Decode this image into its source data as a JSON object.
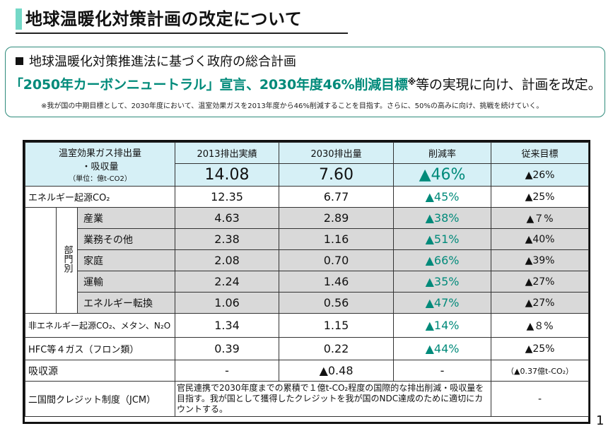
{
  "title": "地球温暖化対策計画の改定について",
  "info": {
    "line1": "地球温暖化対策推進法に基づく政府の総合計画",
    "line2_highlight": "「2050年カーボンニュートラル」宣言、2030年度46%削減目標",
    "line2_sup": "※",
    "line2_rest": "等の実現に向け、計画を改定。",
    "note": "※我が国の中期目標として、2030年度において、温室効果ガスを2013年度から46%削減することを目指す。さらに、50%の高みに向け、挑戦を続けていく。"
  },
  "table": {
    "header": {
      "corner_line1": "温室効果ガス排出量",
      "corner_line2": "・吸収量",
      "corner_unit": "（単位：億t-CO2）",
      "col1": "2013排出実績",
      "col2": "2030排出量",
      "col3": "削減率",
      "col4": "従来目標",
      "total1": "14.08",
      "total2": "7.60",
      "total3": "▲46%",
      "total4": "▲26%"
    },
    "energy_row": {
      "label": "エネルギー起源CO₂",
      "v1": "12.35",
      "v2": "6.77",
      "v3": "▲45%",
      "v4": "▲25%"
    },
    "sector_label": "部門別",
    "sectors": [
      {
        "label": "産業",
        "v1": "4.63",
        "v2": "2.89",
        "v3": "▲38%",
        "v4": "▲７%"
      },
      {
        "label": "業務その他",
        "v1": "2.38",
        "v2": "1.16",
        "v3": "▲51%",
        "v4": "▲40%"
      },
      {
        "label": "家庭",
        "v1": "2.08",
        "v2": "0.70",
        "v3": "▲66%",
        "v4": "▲39%"
      },
      {
        "label": "運輸",
        "v1": "2.24",
        "v2": "1.46",
        "v3": "▲35%",
        "v4": "▲27%"
      },
      {
        "label": "エネルギー転換",
        "v1": "1.06",
        "v2": "0.56",
        "v3": "▲47%",
        "v4": "▲27%"
      }
    ],
    "non_energy": {
      "label": "非エネルギー起源CO₂、メタン、N₂O",
      "v1": "1.34",
      "v2": "1.15",
      "v3": "▲14%",
      "v4": "▲８%"
    },
    "hfc": {
      "label": "HFC等４ガス（フロン類）",
      "v1": "0.39",
      "v2": "0.22",
      "v3": "▲44%",
      "v4": "▲25%"
    },
    "absorption": {
      "label": "吸収源",
      "v1": "-",
      "v2": "▲0.48",
      "v3": "-",
      "v4": "（▲0.37億t-CO₂）"
    },
    "jcm": {
      "label": "二国間クレジット制度（JCM）",
      "desc": "官民連携で2030年度までの累積で１億t-CO₂程度の国際的な排出削減・吸収量を目指す。我が国として獲得したクレジットを我が国のNDC達成のために適切にカウントする。",
      "v4": "-"
    }
  },
  "page_number": "1",
  "colors": {
    "accent": "#74d8c7",
    "green_text": "#008a7a",
    "header_bg": "#d6f0f6",
    "gray_bg": "#d9d9d9"
  }
}
